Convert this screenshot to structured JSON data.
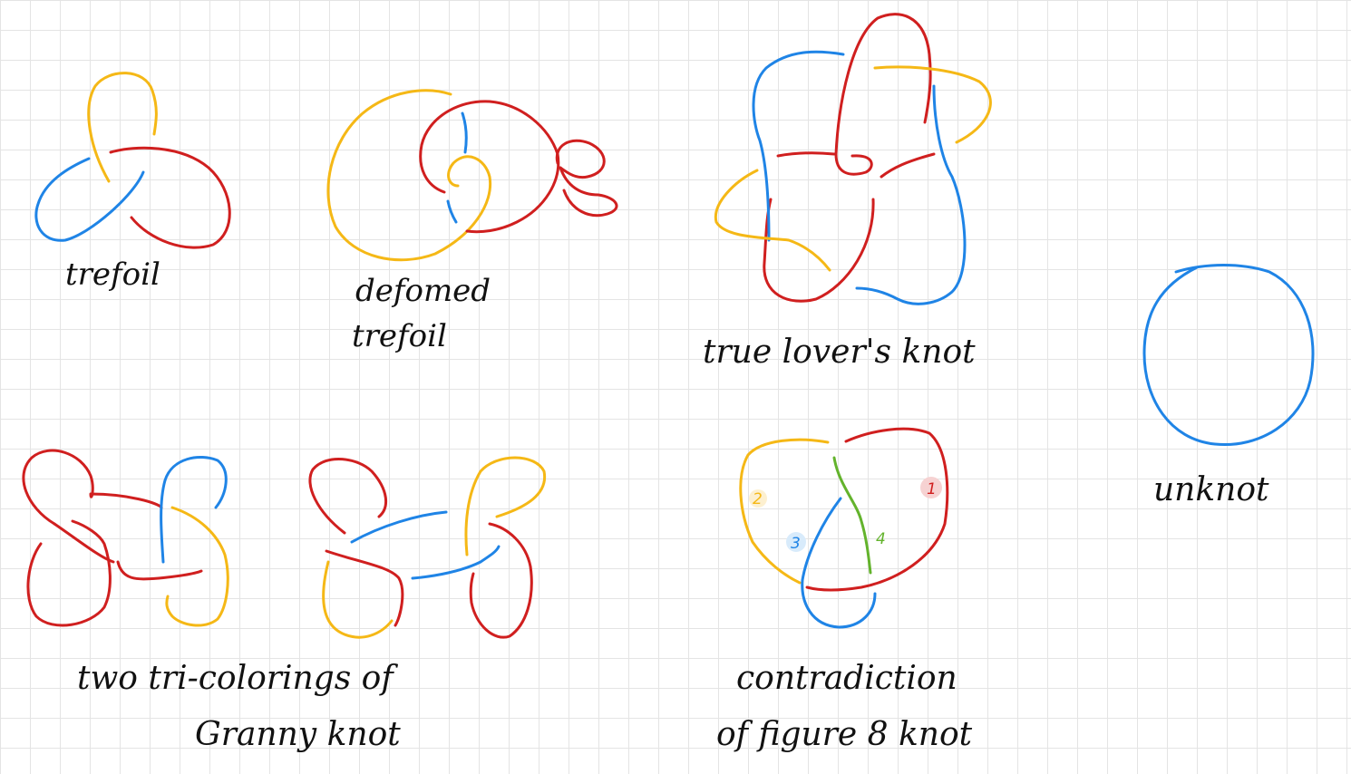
{
  "colors": {
    "red": "#d01f1f",
    "yellow": "#f5b816",
    "blue": "#1f84e6",
    "green": "#63b32c",
    "ink": "#111111"
  },
  "labels": {
    "trefoil": "trefoil",
    "deformed_line1": "defomed",
    "deformed_line2": "trefoil",
    "true_lovers": "true lover's knot",
    "unknot": "unknot",
    "granny_line1": "two tri-colorings of",
    "granny_line2": "Granny knot",
    "fig8_line1": "contradiction",
    "fig8_line2": "of figure 8 knot"
  },
  "figure8_numbers": {
    "n1": "1",
    "n2": "2",
    "n3": "3",
    "n4": "4"
  }
}
